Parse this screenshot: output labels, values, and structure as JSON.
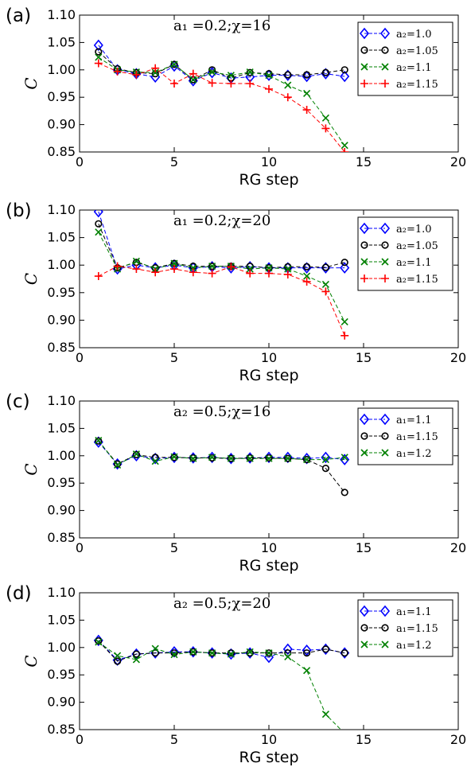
{
  "chart_data": [
    {
      "panel_label": "(a)",
      "type": "line",
      "annotation": "a₁ =0.2;χ=16",
      "xlabel": "RG step",
      "ylabel": "C",
      "xlim": [
        0,
        20
      ],
      "ylim": [
        0.85,
        1.1
      ],
      "xticks": [
        "0",
        "5",
        "10",
        "15",
        "20"
      ],
      "yticks": [
        "0.85",
        "0.90",
        "0.95",
        "1.00",
        "1.05",
        "1.10"
      ],
      "legend_position": "upper right",
      "series": [
        {
          "name": "a₂=1.0",
          "marker": "diamond",
          "color": "#0000ff",
          "x": [
            1,
            2,
            3,
            4,
            5,
            6,
            7,
            8,
            9,
            10,
            11,
            12,
            13,
            14
          ],
          "y": [
            1.045,
            1.0,
            0.993,
            0.987,
            1.007,
            0.98,
            0.995,
            0.985,
            0.987,
            0.99,
            0.99,
            0.988,
            0.993,
            0.988
          ]
        },
        {
          "name": "a₂=1.05",
          "marker": "circle",
          "color": "#000000",
          "x": [
            1,
            2,
            3,
            4,
            5,
            6,
            7,
            8,
            9,
            10,
            11,
            12,
            13,
            14
          ],
          "y": [
            1.033,
            1.002,
            0.995,
            0.993,
            1.01,
            0.982,
            1.0,
            0.985,
            0.995,
            0.993,
            0.991,
            0.991,
            0.995,
            1.0
          ]
        },
        {
          "name": "a₂=1.1",
          "marker": "x",
          "color": "#008000",
          "x": [
            1,
            2,
            3,
            4,
            5,
            6,
            7,
            8,
            9,
            10,
            11,
            12,
            13,
            14
          ],
          "y": [
            1.023,
            1.0,
            0.996,
            0.995,
            1.01,
            0.982,
            0.996,
            0.99,
            0.996,
            0.99,
            0.972,
            0.957,
            0.912,
            0.862
          ]
        },
        {
          "name": "a₂=1.15",
          "marker": "plus",
          "color": "#ff0000",
          "x": [
            1,
            2,
            3,
            4,
            5,
            6,
            7,
            8,
            9,
            10,
            11,
            12,
            13,
            14
          ],
          "y": [
            1.012,
            0.997,
            0.991,
            1.003,
            0.975,
            0.993,
            0.976,
            0.975,
            0.975,
            0.965,
            0.95,
            0.927,
            0.893,
            0.85
          ]
        }
      ]
    },
    {
      "panel_label": "(b)",
      "type": "line",
      "annotation": "a₁ =0.2;χ=20",
      "xlabel": "RG step",
      "ylabel": "C",
      "xlim": [
        0,
        20
      ],
      "ylim": [
        0.85,
        1.1
      ],
      "xticks": [
        "0",
        "5",
        "10",
        "15",
        "20"
      ],
      "yticks": [
        "0.85",
        "0.90",
        "0.95",
        "1.00",
        "1.05",
        "1.10"
      ],
      "legend_position": "upper right",
      "series": [
        {
          "name": "a₂=1.0",
          "marker": "diamond",
          "color": "#0000ff",
          "x": [
            1,
            2,
            3,
            4,
            5,
            6,
            7,
            8,
            9,
            10,
            11,
            12,
            13,
            14
          ],
          "y": [
            1.097,
            0.993,
            1.0,
            0.995,
            1.0,
            0.995,
            0.997,
            0.995,
            0.997,
            0.995,
            0.995,
            0.995,
            0.995,
            0.995
          ]
        },
        {
          "name": "a₂=1.05",
          "marker": "circle",
          "color": "#000000",
          "x": [
            1,
            2,
            3,
            4,
            5,
            6,
            7,
            8,
            9,
            10,
            11,
            12,
            13,
            14
          ],
          "y": [
            1.075,
            0.995,
            1.005,
            0.995,
            1.003,
            0.998,
            0.998,
            0.998,
            0.998,
            0.995,
            0.997,
            0.997,
            0.996,
            1.005
          ]
        },
        {
          "name": "a₂=1.1",
          "marker": "x",
          "color": "#008000",
          "x": [
            1,
            2,
            3,
            4,
            5,
            6,
            7,
            8,
            9,
            10,
            11,
            12,
            13,
            14
          ],
          "y": [
            1.06,
            0.993,
            1.007,
            0.993,
            1.003,
            0.995,
            0.998,
            0.998,
            0.993,
            0.995,
            0.993,
            0.98,
            0.965,
            0.897
          ]
        },
        {
          "name": "a₂=1.15",
          "marker": "plus",
          "color": "#ff0000",
          "x": [
            1,
            2,
            3,
            4,
            5,
            6,
            7,
            8,
            9,
            10,
            11,
            12,
            13,
            14
          ],
          "y": [
            0.98,
            0.998,
            0.993,
            0.987,
            0.993,
            0.987,
            0.985,
            0.997,
            0.985,
            0.985,
            0.983,
            0.97,
            0.952,
            0.872
          ]
        }
      ]
    },
    {
      "panel_label": "(c)",
      "type": "line",
      "annotation": "a₂ =0.5;χ=16",
      "xlabel": "RG step",
      "ylabel": "C",
      "xlim": [
        0,
        20
      ],
      "ylim": [
        0.85,
        1.1
      ],
      "xticks": [
        "0",
        "5",
        "10",
        "15",
        "20"
      ],
      "yticks": [
        "0.85",
        "0.90",
        "0.95",
        "1.00",
        "1.05",
        "1.10"
      ],
      "legend_position": "upper right",
      "series": [
        {
          "name": "a₁=1.1",
          "marker": "diamond",
          "color": "#0000ff",
          "x": [
            1,
            2,
            3,
            4,
            5,
            6,
            7,
            8,
            9,
            10,
            11,
            12,
            13,
            14
          ],
          "y": [
            1.025,
            0.985,
            1.0,
            0.995,
            0.997,
            0.996,
            0.997,
            0.995,
            0.996,
            0.997,
            0.997,
            0.995,
            0.997,
            0.993
          ]
        },
        {
          "name": "a₁=1.15",
          "marker": "circle",
          "color": "#000000",
          "x": [
            1,
            2,
            3,
            4,
            5,
            6,
            7,
            8,
            9,
            10,
            11,
            12,
            13,
            14
          ],
          "y": [
            1.027,
            0.985,
            1.002,
            0.997,
            0.997,
            0.996,
            0.996,
            0.995,
            0.996,
            0.996,
            0.995,
            0.993,
            0.977,
            0.933
          ]
        },
        {
          "name": "a₁=1.2",
          "marker": "x",
          "color": "#008000",
          "x": [
            1,
            2,
            3,
            4,
            5,
            6,
            7,
            8,
            9,
            10,
            11,
            12,
            13,
            14
          ],
          "y": [
            1.028,
            0.983,
            1.003,
            0.99,
            0.998,
            0.995,
            0.997,
            0.995,
            0.995,
            0.995,
            0.995,
            0.993,
            0.993,
            0.997
          ]
        }
      ]
    },
    {
      "panel_label": "(d)",
      "type": "line",
      "annotation": "a₂ =0.5;χ=20",
      "xlabel": "RG step",
      "ylabel": "C",
      "xlim": [
        0,
        20
      ],
      "ylim": [
        0.85,
        1.1
      ],
      "xticks": [
        "0",
        "5",
        "10",
        "15",
        "20"
      ],
      "yticks": [
        "0.85",
        "0.90",
        "0.95",
        "1.00",
        "1.05",
        "1.10"
      ],
      "legend_position": "upper right",
      "series": [
        {
          "name": "a₁=1.1",
          "marker": "diamond",
          "color": "#0000ff",
          "x": [
            1,
            2,
            3,
            4,
            5,
            6,
            7,
            8,
            9,
            10,
            11,
            12,
            13,
            14
          ],
          "y": [
            1.013,
            0.977,
            0.988,
            0.99,
            0.992,
            0.992,
            0.99,
            0.988,
            0.99,
            0.982,
            0.997,
            0.995,
            0.997,
            0.99
          ]
        },
        {
          "name": "a₁=1.15",
          "marker": "circle",
          "color": "#000000",
          "x": [
            1,
            2,
            3,
            4,
            5,
            6,
            7,
            8,
            9,
            10,
            11,
            12,
            13,
            14
          ],
          "y": [
            1.012,
            0.975,
            0.988,
            0.99,
            0.99,
            0.992,
            0.99,
            0.99,
            0.99,
            0.99,
            0.99,
            0.99,
            0.997,
            0.99
          ]
        },
        {
          "name": "a₁=1.2",
          "marker": "x",
          "color": "#008000",
          "x": [
            1,
            2,
            3,
            4,
            5,
            6,
            7,
            8,
            9,
            10,
            11,
            12,
            13,
            14
          ],
          "y": [
            1.01,
            0.985,
            0.978,
            0.998,
            0.987,
            0.992,
            0.99,
            0.988,
            0.992,
            0.99,
            0.983,
            0.958,
            0.878,
            0.843
          ]
        }
      ]
    }
  ]
}
